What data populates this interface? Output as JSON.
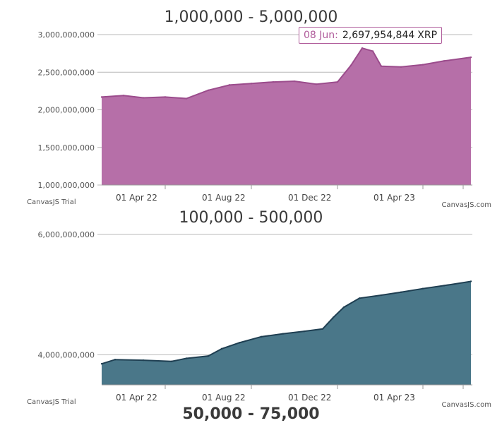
{
  "chart_data": [
    {
      "type": "area",
      "title": "1,000,000 - 5,000,000",
      "color": "#b66fa8",
      "line_color": "#9b4c8c",
      "ylim": [
        1000000000,
        3000000000
      ],
      "y_ticks": [
        {
          "value": 1000000000,
          "label": "1,000,000,000"
        },
        {
          "value": 1500000000,
          "label": "1,500,000,000"
        },
        {
          "value": 2000000000,
          "label": "2,000,000,000"
        },
        {
          "value": 2500000000,
          "label": "2,500,000,000"
        },
        {
          "value": 3000000000,
          "label": "3,000,000,000"
        }
      ],
      "x_ticks": [
        {
          "date": "2022-04-01",
          "label": "01 Apr 22"
        },
        {
          "date": "2022-08-01",
          "label": "01 Aug 22"
        },
        {
          "date": "2022-12-01",
          "label": "01 Dec 22"
        },
        {
          "date": "2023-04-01",
          "label": "01 Apr 23"
        }
      ],
      "x_range": [
        "2022-01-01",
        "2023-06-10"
      ],
      "x": [
        "2022-01-01",
        "2022-02-01",
        "2022-03-01",
        "2022-04-01",
        "2022-05-01",
        "2022-06-01",
        "2022-07-01",
        "2022-08-01",
        "2022-09-01",
        "2022-10-01",
        "2022-11-01",
        "2022-12-01",
        "2022-12-20",
        "2023-01-05",
        "2023-01-20",
        "2023-02-01",
        "2023-03-01",
        "2023-04-01",
        "2023-05-01",
        "2023-06-08"
      ],
      "values": [
        2170000000,
        2190000000,
        2160000000,
        2170000000,
        2150000000,
        2260000000,
        2330000000,
        2350000000,
        2370000000,
        2380000000,
        2340000000,
        2370000000,
        2590000000,
        2820000000,
        2780000000,
        2580000000,
        2570000000,
        2600000000,
        2650000000,
        2697954844
      ],
      "tooltip": {
        "date": "08 Jun:",
        "value": "2,697,954,844",
        "unit": "XRP"
      },
      "credits": {
        "left": "CanvasJS Trial",
        "right": "CanvasJS.com"
      }
    },
    {
      "type": "area",
      "title": "100,000 - 500,000",
      "color": "#4a7789",
      "line_color": "#1f3f52",
      "ylim": [
        3500000000,
        6000000000
      ],
      "y_ticks": [
        {
          "value": 4000000000,
          "label": "4,000,000,000"
        },
        {
          "value": 6000000000,
          "label": "6,000,000,000"
        }
      ],
      "x_ticks": [
        {
          "date": "2022-04-01",
          "label": "01 Apr 22"
        },
        {
          "date": "2022-08-01",
          "label": "01 Aug 22"
        },
        {
          "date": "2022-12-01",
          "label": "01 Dec 22"
        },
        {
          "date": "2023-04-01",
          "label": "01 Apr 23"
        }
      ],
      "x_range": [
        "2022-01-01",
        "2023-06-10"
      ],
      "x": [
        "2022-01-01",
        "2022-01-20",
        "2022-03-01",
        "2022-04-10",
        "2022-05-01",
        "2022-06-01",
        "2022-06-20",
        "2022-07-15",
        "2022-08-15",
        "2022-09-15",
        "2022-10-15",
        "2022-11-10",
        "2022-11-25",
        "2022-12-10",
        "2023-01-01",
        "2023-02-01",
        "2023-03-01",
        "2023-04-01",
        "2023-05-01",
        "2023-06-08"
      ],
      "values": [
        3850000000,
        3920000000,
        3910000000,
        3890000000,
        3940000000,
        3980000000,
        4100000000,
        4200000000,
        4300000000,
        4350000000,
        4390000000,
        4430000000,
        4620000000,
        4790000000,
        4940000000,
        4990000000,
        5040000000,
        5100000000,
        5150000000,
        5220000000
      ],
      "credits": {
        "left": "CanvasJS Trial",
        "right": "CanvasJS.com"
      }
    }
  ],
  "next_chart_title": "50,000 - 75,000"
}
